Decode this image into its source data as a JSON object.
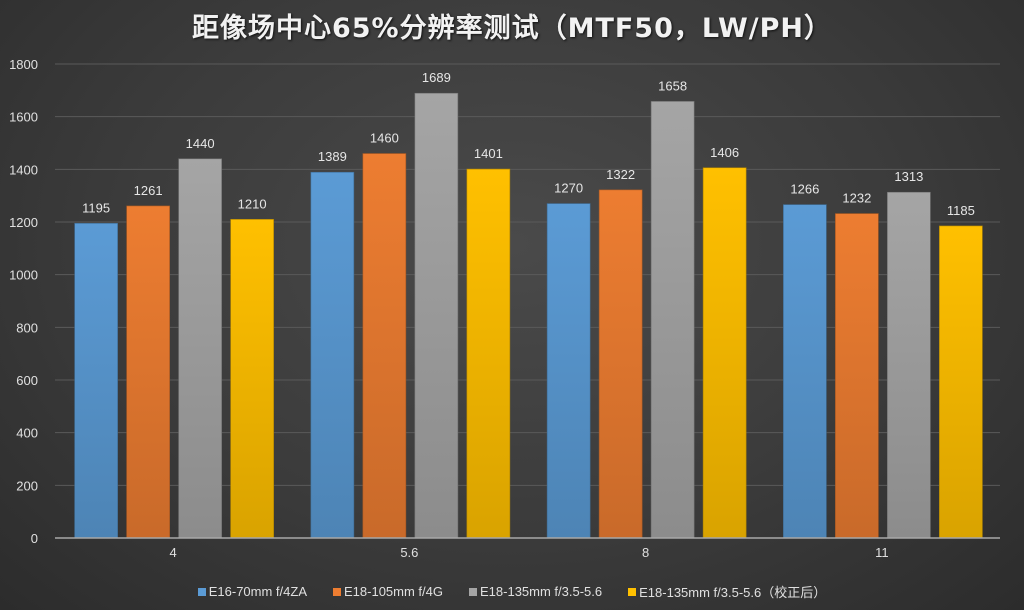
{
  "chart_data": {
    "type": "bar",
    "title": "距像场中心65%分辨率测试（MTF50，LW/PH）",
    "xlabel": "",
    "ylabel": "",
    "categories": [
      "4",
      "5.6",
      "8",
      "11"
    ],
    "series": [
      {
        "name": "E16-70mm f/4ZA",
        "color": "#5b9bd5",
        "values": [
          1195,
          1389,
          1270,
          1266
        ]
      },
      {
        "name": "E18-105mm f/4G",
        "color": "#ed7d31",
        "values": [
          1261,
          1460,
          1322,
          1232
        ]
      },
      {
        "name": "E18-135mm f/3.5-5.6",
        "color": "#a5a5a5",
        "values": [
          1440,
          1689,
          1658,
          1313
        ]
      },
      {
        "name": "E18-135mm f/3.5-5.6（校正后）",
        "color": "#ffc000",
        "values": [
          1210,
          1401,
          1406,
          1185
        ]
      }
    ],
    "ylim": [
      0,
      1800
    ],
    "yticks": [
      0,
      200,
      400,
      600,
      800,
      1000,
      1200,
      1400,
      1600,
      1800
    ],
    "grid": true,
    "data_labels": true,
    "legend_position": "bottom"
  }
}
